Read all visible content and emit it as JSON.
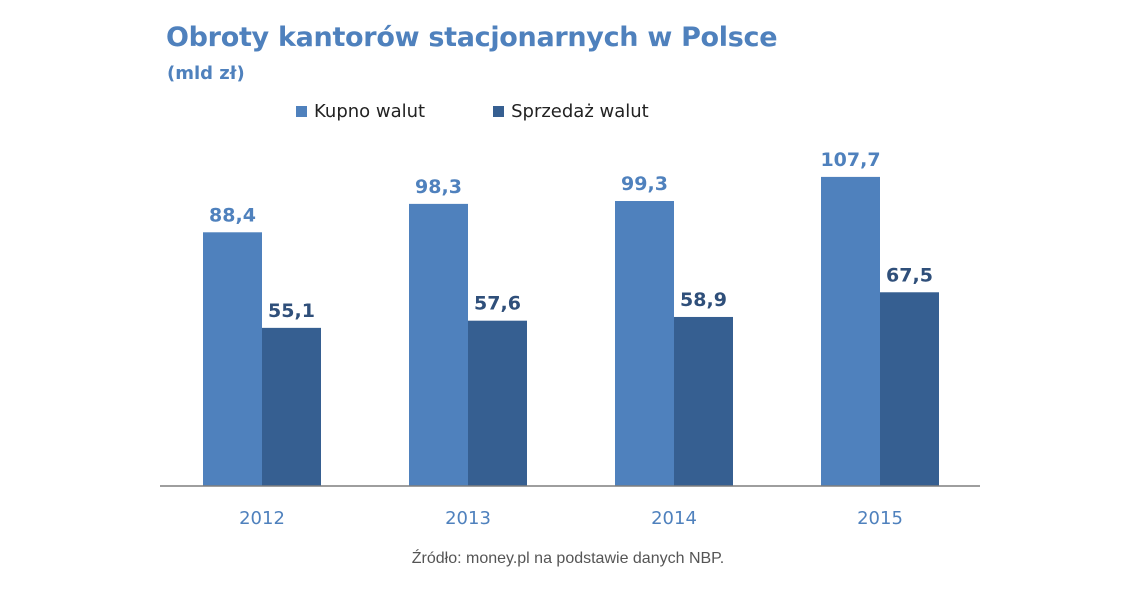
{
  "chart_data": {
    "type": "bar",
    "title": "Obroty kantorów stacjonarnych w Polsce",
    "subtitle": "(mld zł)",
    "categories": [
      "2012",
      "2013",
      "2014",
      "2015"
    ],
    "series": [
      {
        "name": "Kupno walut",
        "values": [
          88.4,
          98.3,
          99.3,
          107.7
        ],
        "labels": [
          "88,4",
          "98,3",
          "99,3",
          "107,7"
        ],
        "color": "#4f81bd",
        "label_color": "#4f81bd"
      },
      {
        "name": "Sprzedaż walut",
        "values": [
          55.1,
          57.6,
          58.9,
          67.5
        ],
        "labels": [
          "55,1",
          "57,6",
          "58,9",
          "67,5"
        ],
        "color": "#365f91",
        "label_color": "#2f4f7a"
      }
    ],
    "ylim": [
      0,
      110
    ],
    "grid": false,
    "legend_position": "top"
  },
  "source": "Źródło: money.pl na podstawie danych NBP.",
  "colors": {
    "title": "#4f81bd",
    "axis": "#7f7f7f",
    "category_label": "#4f81bd"
  }
}
